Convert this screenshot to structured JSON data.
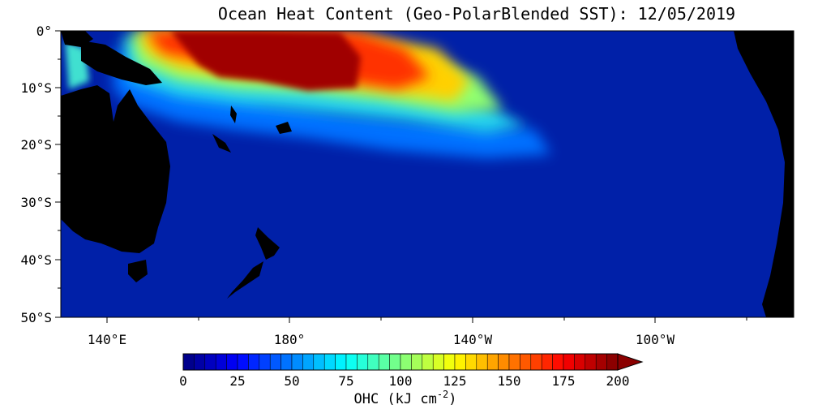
{
  "title": "Ocean Heat Content (Geo-PolarBlended SST): 12/05/2019",
  "lat_labels": [
    "0°",
    "10°S",
    "20°S",
    "30°S",
    "40°S",
    "50°S"
  ],
  "lon_labels": [
    "140°E",
    "180°",
    "140°W",
    "100°W"
  ],
  "colorbar": {
    "tick_labels": [
      "0",
      "25",
      "50",
      "75",
      "100",
      "125",
      "150",
      "175",
      "200"
    ],
    "unit_label": "OHC (kJ cm",
    "unit_exponent": "-2",
    "unit_close": ")",
    "stops": [
      "#00007f",
      "#0000ff",
      "#007fff",
      "#00ffff",
      "#7fff7f",
      "#ffff00",
      "#ff7f00",
      "#ff0000",
      "#7f0000"
    ]
  },
  "colors": {
    "land": "#000000",
    "ocean_background": "#0020a8",
    "warm_pool_core": "#a00000"
  }
}
